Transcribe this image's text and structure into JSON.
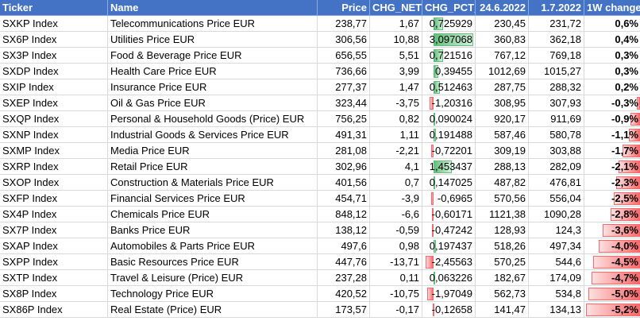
{
  "table": {
    "header": [
      "Ticker",
      "Name",
      "Price",
      "CHG_NET",
      "CHG_PCT_",
      "24.6.2022",
      "1.7.2022",
      "1W change"
    ],
    "rows": [
      [
        "SXKP Index",
        "Telecommunications Price EUR",
        "238,77",
        "1,67",
        "0,725929",
        "230,45",
        "231,72",
        "0,6%"
      ],
      [
        "SX6P Index",
        "Utilities Price EUR",
        "306,56",
        "10,88",
        "3,097068",
        "360,83",
        "362,18",
        "0,4%"
      ],
      [
        "SX3P Index",
        "Food & Beverage Price EUR",
        "656,55",
        "5,51",
        "0,721516",
        "767,12",
        "769,18",
        "0,3%"
      ],
      [
        "SXDP Index",
        "Health Care Price EUR",
        "736,66",
        "3,99",
        "0,39455",
        "1012,69",
        "1015,27",
        "0,3%"
      ],
      [
        "SXIP Index",
        "Insurance Price EUR",
        "277,37",
        "1,47",
        "0,512463",
        "287,75",
        "288,32",
        "0,2%"
      ],
      [
        "SXEP Index",
        "Oil & Gas Price EUR",
        "323,44",
        "-3,75",
        "-1,20316",
        "308,95",
        "307,93",
        "-0,3%"
      ],
      [
        "SXQP Index",
        "Personal & Household Goods (Price) EUR",
        "756,25",
        "0,82",
        "0,090024",
        "920,17",
        "911,69",
        "-0,9%"
      ],
      [
        "SXNP Index",
        "Industrial Goods & Services Price EUR",
        "491,31",
        "1,11",
        "0,191488",
        "587,46",
        "580,78",
        "-1,1%"
      ],
      [
        "SXMP Index",
        "Media Price EUR",
        "281,08",
        "-2,21",
        "-0,72201",
        "309,19",
        "303,88",
        "-1,7%"
      ],
      [
        "SXRP Index",
        "Retail Price EUR",
        "302,96",
        "4,1",
        "1,453437",
        "288,13",
        "282,09",
        "-2,1%"
      ],
      [
        "SXOP Index",
        "Construction & Materials Price EUR",
        "401,56",
        "0,7",
        "0,147025",
        "487,82",
        "476,81",
        "-2,3%"
      ],
      [
        "SXFP Index",
        "Financial Services Price EUR",
        "454,71",
        "-3,9",
        "-0,6965",
        "570,56",
        "556,04",
        "-2,5%"
      ],
      [
        "SX4P Index",
        "Chemicals Price EUR",
        "848,12",
        "-6,6",
        "-0,60171",
        "1121,38",
        "1090,28",
        "-2,8%"
      ],
      [
        "SX7P Index",
        "Banks Price EUR",
        "138,12",
        "-0,59",
        "-0,47242",
        "128,93",
        "124,3",
        "-3,6%"
      ],
      [
        "SXAP Index",
        "Automobiles & Parts Price EUR",
        "497,6",
        "0,98",
        "0,197437",
        "518,26",
        "497,34",
        "-4,0%"
      ],
      [
        "SXPP Index",
        "Basic Resources Price EUR",
        "447,76",
        "-13,71",
        "-2,45563",
        "570,25",
        "544,6",
        "-4,5%"
      ],
      [
        "SXTP Index",
        "Travel & Leisure (Price) EUR",
        "237,28",
        "0,11",
        "0,063226",
        "182,67",
        "174,09",
        "-4,7%"
      ],
      [
        "SX8P Index",
        "Technology Price EUR",
        "420,52",
        "-10,75",
        "-1,97049",
        "562,73",
        "534,8",
        "-5,0%"
      ],
      [
        "SX86P Index",
        "Real Estate (Price) EUR",
        "173,57",
        "-0,17",
        "-0,12658",
        "141,47",
        "134,13",
        "-5,2%"
      ]
    ]
  }
}
